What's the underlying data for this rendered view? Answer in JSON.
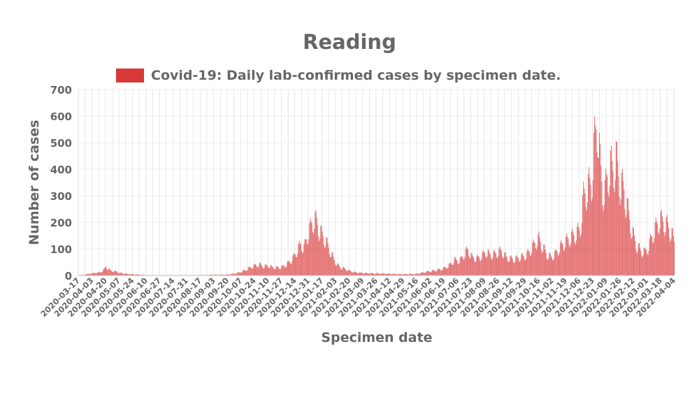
{
  "chart_data": {
    "type": "bar",
    "title": "Reading",
    "xlabel": "Specimen date",
    "ylabel": "Number of cases",
    "legend": {
      "label": "Covid-19: Daily lab-confirmed cases by specimen date.",
      "placement": "top-center"
    },
    "series_color": "#d62728",
    "x_range": [
      "2020-03-17",
      "2022-04-04"
    ],
    "ylim": [
      0,
      700
    ],
    "yticks": [
      0,
      100,
      200,
      300,
      400,
      500,
      600,
      700
    ],
    "xticks": [
      "2020-03-17",
      "2020-04-03",
      "2020-04-20",
      "2020-05-07",
      "2020-05-24",
      "2020-06-10",
      "2020-06-27",
      "2020-07-14",
      "2020-07-31",
      "2020-08-17",
      "2020-09-03",
      "2020-09-20",
      "2020-10-07",
      "2020-10-24",
      "2020-11-10",
      "2020-11-27",
      "2020-12-14",
      "2020-12-31",
      "2021-01-17",
      "2021-02-03",
      "2021-02-20",
      "2021-03-09",
      "2021-03-26",
      "2021-04-12",
      "2021-04-29",
      "2021-05-16",
      "2021-06-02",
      "2021-06-19",
      "2021-07-06",
      "2021-07-23",
      "2021-08-09",
      "2021-08-26",
      "2021-09-12",
      "2021-09-29",
      "2021-10-16",
      "2021-11-02",
      "2021-11-19",
      "2021-12-06",
      "2021-12-23",
      "2022-01-09",
      "2022-01-26",
      "2022-02-12",
      "2022-03-01",
      "2022-03-18",
      "2022-04-04"
    ],
    "grid": true,
    "points": [
      [
        "2020-03-17",
        1
      ],
      [
        "2020-03-24",
        3
      ],
      [
        "2020-03-31",
        7
      ],
      [
        "2020-04-04",
        8
      ],
      [
        "2020-04-08",
        12
      ],
      [
        "2020-04-11",
        10
      ],
      [
        "2020-04-14",
        14
      ],
      [
        "2020-04-18",
        22
      ],
      [
        "2020-04-20",
        35
      ],
      [
        "2020-04-23",
        25
      ],
      [
        "2020-04-27",
        18
      ],
      [
        "2020-05-01",
        16
      ],
      [
        "2020-05-04",
        15
      ],
      [
        "2020-05-07",
        10
      ],
      [
        "2020-05-12",
        8
      ],
      [
        "2020-05-17",
        6
      ],
      [
        "2020-05-22",
        5
      ],
      [
        "2020-05-27",
        4
      ],
      [
        "2020-06-02",
        3
      ],
      [
        "2020-06-08",
        2
      ],
      [
        "2020-06-15",
        1
      ],
      [
        "2020-06-25",
        1
      ],
      [
        "2020-07-10",
        1
      ],
      [
        "2020-07-25",
        1
      ],
      [
        "2020-08-10",
        1
      ],
      [
        "2020-08-25",
        2
      ],
      [
        "2020-09-05",
        3
      ],
      [
        "2020-09-15",
        3
      ],
      [
        "2020-09-22",
        4
      ],
      [
        "2020-09-28",
        7
      ],
      [
        "2020-10-03",
        10
      ],
      [
        "2020-10-08",
        15
      ],
      [
        "2020-10-13",
        22
      ],
      [
        "2020-10-18",
        30
      ],
      [
        "2020-10-24",
        38
      ],
      [
        "2020-10-30",
        42
      ],
      [
        "2020-11-05",
        35
      ],
      [
        "2020-11-10",
        38
      ],
      [
        "2020-11-15",
        32
      ],
      [
        "2020-11-20",
        30
      ],
      [
        "2020-11-27",
        32
      ],
      [
        "2020-12-03",
        42
      ],
      [
        "2020-12-08",
        55
      ],
      [
        "2020-12-13",
        75
      ],
      [
        "2020-12-17",
        100
      ],
      [
        "2020-12-21",
        120
      ],
      [
        "2020-12-25",
        105
      ],
      [
        "2020-12-29",
        150
      ],
      [
        "2021-01-01",
        175
      ],
      [
        "2021-01-04",
        200
      ],
      [
        "2021-01-07",
        215
      ],
      [
        "2021-01-10",
        205
      ],
      [
        "2021-01-13",
        175
      ],
      [
        "2021-01-16",
        160
      ],
      [
        "2021-01-20",
        140
      ],
      [
        "2021-01-24",
        115
      ],
      [
        "2021-01-28",
        85
      ],
      [
        "2021-02-01",
        60
      ],
      [
        "2021-02-05",
        40
      ],
      [
        "2021-02-10",
        30
      ],
      [
        "2021-02-15",
        25
      ],
      [
        "2021-02-20",
        18
      ],
      [
        "2021-02-27",
        12
      ],
      [
        "2021-03-06",
        10
      ],
      [
        "2021-03-15",
        9
      ],
      [
        "2021-03-25",
        8
      ],
      [
        "2021-04-05",
        7
      ],
      [
        "2021-04-15",
        6
      ],
      [
        "2021-04-25",
        5
      ],
      [
        "2021-05-05",
        5
      ],
      [
        "2021-05-15",
        6
      ],
      [
        "2021-05-22",
        10
      ],
      [
        "2021-05-29",
        15
      ],
      [
        "2021-06-05",
        18
      ],
      [
        "2021-06-12",
        22
      ],
      [
        "2021-06-19",
        28
      ],
      [
        "2021-06-26",
        40
      ],
      [
        "2021-07-02",
        60
      ],
      [
        "2021-07-08",
        55
      ],
      [
        "2021-07-14",
        80
      ],
      [
        "2021-07-19",
        100
      ],
      [
        "2021-07-24",
        70
      ],
      [
        "2021-07-30",
        65
      ],
      [
        "2021-08-05",
        75
      ],
      [
        "2021-08-10",
        90
      ],
      [
        "2021-08-17",
        78
      ],
      [
        "2021-08-24",
        85
      ],
      [
        "2021-08-30",
        95
      ],
      [
        "2021-09-05",
        70
      ],
      [
        "2021-09-10",
        65
      ],
      [
        "2021-09-15",
        62
      ],
      [
        "2021-09-22",
        70
      ],
      [
        "2021-09-29",
        75
      ],
      [
        "2021-10-05",
        95
      ],
      [
        "2021-10-11",
        125
      ],
      [
        "2021-10-16",
        140
      ],
      [
        "2021-10-21",
        110
      ],
      [
        "2021-10-26",
        80
      ],
      [
        "2021-11-01",
        70
      ],
      [
        "2021-11-06",
        85
      ],
      [
        "2021-11-12",
        110
      ],
      [
        "2021-11-17",
        125
      ],
      [
        "2021-11-22",
        140
      ],
      [
        "2021-11-27",
        150
      ],
      [
        "2021-12-02",
        160
      ],
      [
        "2021-12-07",
        180
      ],
      [
        "2021-12-11",
        300
      ],
      [
        "2021-12-15",
        330
      ],
      [
        "2021-12-18",
        345
      ],
      [
        "2021-12-21",
        350
      ],
      [
        "2021-12-24",
        480
      ],
      [
        "2021-12-27",
        560
      ],
      [
        "2021-12-29",
        600
      ],
      [
        "2022-01-01",
        420
      ],
      [
        "2022-01-04",
        330
      ],
      [
        "2022-01-07",
        320
      ],
      [
        "2022-01-10",
        380
      ],
      [
        "2022-01-14",
        420
      ],
      [
        "2022-01-17",
        400
      ],
      [
        "2022-01-21",
        450
      ],
      [
        "2022-01-24",
        380
      ],
      [
        "2022-01-27",
        350
      ],
      [
        "2022-01-31",
        330
      ],
      [
        "2022-02-04",
        260
      ],
      [
        "2022-02-08",
        200
      ],
      [
        "2022-02-12",
        150
      ],
      [
        "2022-02-16",
        115
      ],
      [
        "2022-02-21",
        95
      ],
      [
        "2022-02-26",
        90
      ],
      [
        "2022-03-02",
        105
      ],
      [
        "2022-03-07",
        150
      ],
      [
        "2022-03-12",
        185
      ],
      [
        "2022-03-17",
        215
      ],
      [
        "2022-03-22",
        205
      ],
      [
        "2022-03-27",
        190
      ],
      [
        "2022-04-01",
        160
      ],
      [
        "2022-04-04",
        130
      ]
    ]
  }
}
